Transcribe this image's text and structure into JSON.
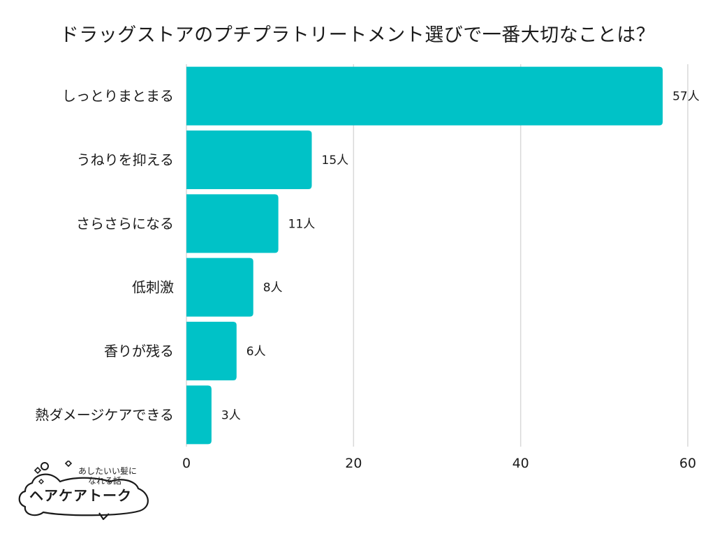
{
  "chart_data": {
    "type": "bar",
    "orientation": "horizontal",
    "title": "ドラッグストアのプチプラトリートメント選びで一番大切なことは？",
    "categories": [
      "しっとりまとまる",
      "うねりを抑える",
      "さらさらになる",
      "低刺激",
      "香りが残る",
      "熱ダメージケアできる"
    ],
    "values": [
      57,
      15,
      11,
      8,
      6,
      3
    ],
    "value_labels": [
      "57人",
      "15人",
      "11人",
      "8人",
      "6人",
      "3人"
    ],
    "xlim": [
      0,
      60
    ],
    "xticks": [
      0,
      20,
      40,
      60
    ],
    "xtick_labels": [
      "0",
      "20",
      "40",
      "60"
    ],
    "xlabel": "",
    "ylabel": "",
    "grid": true,
    "bar_color": "#00c2c7",
    "grid_color": "#d9d9d9"
  },
  "logo": {
    "tagline_line1": "あしたいい髪に",
    "tagline_line2": "なれる話",
    "name": "ヘアケアトーク"
  }
}
